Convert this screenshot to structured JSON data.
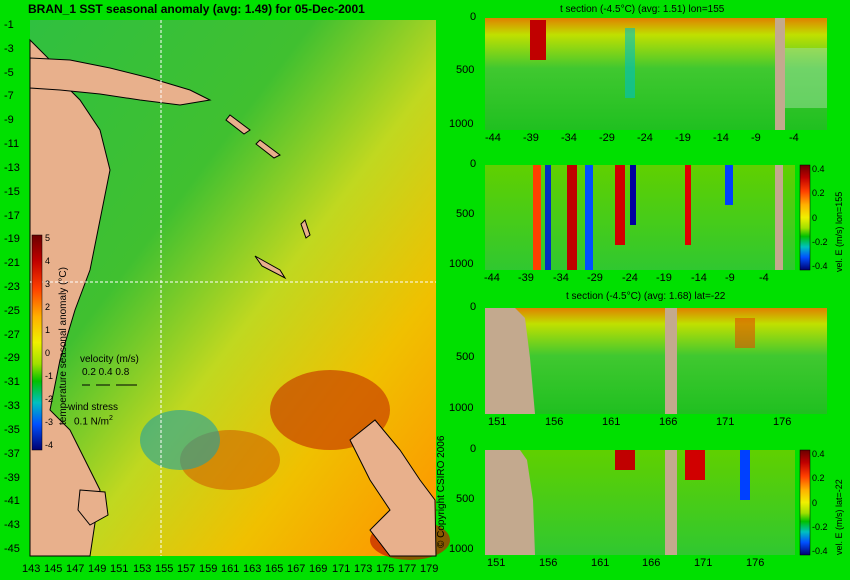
{
  "main_title": "BRAN_1  SST seasonal anomaly (avg: 1.49) for 05-Dec-2001",
  "copyright": "© Copyright CSIRO 2006",
  "colors": {
    "background": "#00e000",
    "land": "#e8b08c",
    "section_land": "#c3a98e",
    "grid_line": "#ffffff"
  },
  "chart_data": [
    {
      "type": "heatmap",
      "title": "BRAN_1  SST seasonal anomaly (avg: 1.49) for 05-Dec-2001",
      "x_ticks": [
        "143",
        "145",
        "147",
        "149",
        "151",
        "153",
        "155",
        "157",
        "159",
        "161",
        "163",
        "165",
        "167",
        "169",
        "171",
        "173",
        "175",
        "177",
        "179"
      ],
      "y_ticks": [
        "-1",
        "-3",
        "-5",
        "-7",
        "-9",
        "-11",
        "-13",
        "-15",
        "-17",
        "-19",
        "-21",
        "-23",
        "-25",
        "-27",
        "-29",
        "-31",
        "-33",
        "-35",
        "-37",
        "-39",
        "-41",
        "-43",
        "-45"
      ],
      "xlim": [
        143,
        180
      ],
      "ylim": [
        -45,
        0
      ],
      "avg": 1.49,
      "colorbar": {
        "label": "temperature seasonal anomaly (°C)",
        "ticks": [
          "5",
          "4",
          "3",
          "2",
          "1",
          "0",
          "-1",
          "-2",
          "-3",
          "-4"
        ],
        "range": [
          -4,
          5
        ]
      },
      "legend": {
        "velocity_label": "velocity (m/s)",
        "velocity_values": "0.2 0.4 0.8",
        "wind_label": "wind stress",
        "wind_value": "0.1 N/m"
      },
      "crosshair": {
        "lon": 155,
        "lat": -22
      }
    },
    {
      "type": "heatmap",
      "title": "t section (-4.5°C) (avg: 1.51) lon=155",
      "x_ticks": [
        "-44",
        "-39",
        "-34",
        "-29",
        "-24",
        "-19",
        "-14",
        "-9",
        "-4"
      ],
      "y_ticks": [
        "0",
        "500",
        "1000"
      ],
      "xlim": [
        -45,
        0
      ],
      "ylim": [
        1050,
        0
      ]
    },
    {
      "type": "heatmap",
      "title": "",
      "x_ticks": [
        "-44",
        "-39",
        "-34",
        "-29",
        "-24",
        "-19",
        "-14",
        "-9",
        "-4"
      ],
      "y_ticks": [
        "0",
        "500",
        "1000"
      ],
      "xlim": [
        -45,
        0
      ],
      "ylim": [
        1050,
        0
      ],
      "colorbar": {
        "label": "vel. E (m/s) lon=155",
        "ticks": [
          "0.4",
          "0.2",
          "0",
          "-0.2",
          "-0.4"
        ],
        "range": [
          -0.4,
          0.4
        ]
      }
    },
    {
      "type": "heatmap",
      "title": "t section (-4.5°C) (avg: 1.68) lat=-22",
      "x_ticks": [
        "151",
        "156",
        "161",
        "166",
        "171",
        "176"
      ],
      "y_ticks": [
        "0",
        "500",
        "1000"
      ],
      "xlim": [
        150,
        180
      ],
      "ylim": [
        1050,
        0
      ]
    },
    {
      "type": "heatmap",
      "title": "",
      "x_ticks": [
        "151",
        "156",
        "161",
        "166",
        "171",
        "176"
      ],
      "y_ticks": [
        "0",
        "500",
        "1000"
      ],
      "xlim": [
        150,
        180
      ],
      "ylim": [
        1050,
        0
      ],
      "colorbar": {
        "label": "vel. E (m/s) lat=-22",
        "ticks": [
          "0.4",
          "0.2",
          "0",
          "-0.2",
          "-0.4"
        ],
        "range": [
          -0.4,
          0.4
        ]
      }
    }
  ]
}
